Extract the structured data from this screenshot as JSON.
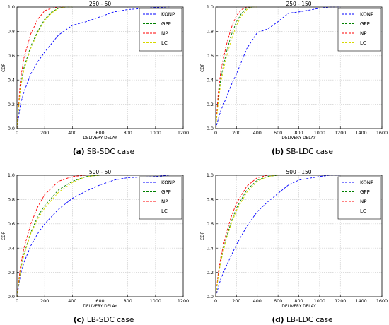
{
  "chart_data": [
    {
      "type": "line",
      "title": "250 - 50",
      "caption_label": "(a)",
      "caption_text": "SB-SDC case",
      "xlabel": "DELIVERY DELAY",
      "ylabel": "CDF",
      "xlim": [
        0,
        1200
      ],
      "ylim": [
        0,
        1.0
      ],
      "xticks": [
        "0",
        "200",
        "400",
        "600",
        "800",
        "1000",
        "1200"
      ],
      "yticks": [
        "0.0",
        "0.2",
        "0.4",
        "0.6",
        "0.8",
        "1.0"
      ],
      "grid": true,
      "legend_position": "top-right",
      "series": [
        {
          "name": "KONP",
          "color": "#0000ff",
          "x": [
            0,
            25,
            50,
            100,
            150,
            200,
            300,
            400,
            500,
            600,
            700,
            800,
            1000,
            1100
          ],
          "y": [
            0,
            0.2,
            0.3,
            0.45,
            0.55,
            0.63,
            0.77,
            0.85,
            0.88,
            0.92,
            0.96,
            0.98,
            0.995,
            1.0
          ]
        },
        {
          "name": "GPP",
          "color": "#008000",
          "x": [
            0,
            25,
            50,
            100,
            150,
            200,
            250,
            300,
            350,
            400
          ],
          "y": [
            0,
            0.35,
            0.5,
            0.68,
            0.8,
            0.9,
            0.96,
            0.99,
            1.0,
            1.0
          ]
        },
        {
          "name": "NP",
          "color": "#ff0000",
          "x": [
            0,
            25,
            50,
            100,
            150,
            200,
            250,
            300,
            350
          ],
          "y": [
            0,
            0.4,
            0.58,
            0.78,
            0.9,
            0.97,
            0.99,
            1.0,
            1.0
          ]
        },
        {
          "name": "LC",
          "color": "#d8d800",
          "x": [
            0,
            25,
            50,
            100,
            150,
            200,
            250,
            300,
            350,
            400
          ],
          "y": [
            0,
            0.33,
            0.48,
            0.66,
            0.79,
            0.89,
            0.95,
            0.99,
            1.0,
            1.0
          ]
        }
      ]
    },
    {
      "type": "line",
      "title": "250 - 150",
      "caption_label": "(b)",
      "caption_text": "SB-LDC case",
      "xlabel": "DELIVERY DELAY",
      "ylabel": "CDF",
      "xlim": [
        0,
        1600
      ],
      "ylim": [
        0,
        1.0
      ],
      "xticks": [
        "0",
        "200",
        "400",
        "600",
        "800",
        "1000",
        "1200",
        "1400",
        "1600"
      ],
      "yticks": [
        "0.0",
        "0.2",
        "0.4",
        "0.6",
        "0.8",
        "1.0"
      ],
      "grid": true,
      "legend_position": "top-right",
      "series": [
        {
          "name": "KONP",
          "color": "#0000ff",
          "x": [
            0,
            25,
            50,
            100,
            150,
            200,
            300,
            400,
            500,
            600,
            700,
            800,
            1000,
            1100,
            1200
          ],
          "y": [
            0,
            0.08,
            0.15,
            0.25,
            0.36,
            0.45,
            0.66,
            0.79,
            0.82,
            0.88,
            0.95,
            0.96,
            0.99,
            1.0,
            1.0
          ]
        },
        {
          "name": "GPP",
          "color": "#008000",
          "x": [
            0,
            25,
            50,
            100,
            150,
            200,
            250,
            300,
            350
          ],
          "y": [
            0,
            0.25,
            0.42,
            0.62,
            0.77,
            0.88,
            0.95,
            0.99,
            1.0
          ]
        },
        {
          "name": "NP",
          "color": "#ff0000",
          "x": [
            0,
            25,
            50,
            100,
            150,
            200,
            250,
            300,
            350
          ],
          "y": [
            0,
            0.3,
            0.48,
            0.68,
            0.83,
            0.93,
            0.98,
            1.0,
            1.0
          ]
        },
        {
          "name": "LC",
          "color": "#d8d800",
          "x": [
            0,
            25,
            50,
            100,
            150,
            200,
            250,
            300,
            350,
            400
          ],
          "y": [
            0,
            0.22,
            0.38,
            0.58,
            0.73,
            0.85,
            0.93,
            0.98,
            1.0,
            1.0
          ]
        }
      ]
    },
    {
      "type": "line",
      "title": "500 - 50",
      "caption_label": "(c)",
      "caption_text": "LB-SDC case",
      "xlabel": "DELIVERY DELAY",
      "ylabel": "CDF",
      "xlim": [
        0,
        1200
      ],
      "ylim": [
        0,
        1.0
      ],
      "xticks": [
        "0",
        "200",
        "400",
        "600",
        "800",
        "1000",
        "1200"
      ],
      "yticks": [
        "0.0",
        "0.2",
        "0.4",
        "0.6",
        "0.8",
        "1.0"
      ],
      "grid": true,
      "legend_position": "top-right",
      "series": [
        {
          "name": "KONP",
          "color": "#0000ff",
          "x": [
            0,
            25,
            50,
            100,
            150,
            200,
            300,
            400,
            500,
            600,
            700,
            800,
            1000,
            1100
          ],
          "y": [
            0,
            0.18,
            0.28,
            0.42,
            0.52,
            0.6,
            0.72,
            0.81,
            0.87,
            0.92,
            0.96,
            0.98,
            0.99,
            1.0
          ]
        },
        {
          "name": "GPP",
          "color": "#008000",
          "x": [
            0,
            25,
            50,
            100,
            150,
            200,
            300,
            400,
            500,
            600
          ],
          "y": [
            0,
            0.22,
            0.35,
            0.53,
            0.66,
            0.75,
            0.88,
            0.95,
            0.99,
            1.0
          ]
        },
        {
          "name": "NP",
          "color": "#ff0000",
          "x": [
            0,
            25,
            50,
            100,
            150,
            200,
            300,
            400,
            500
          ],
          "y": [
            0,
            0.25,
            0.4,
            0.6,
            0.74,
            0.84,
            0.95,
            0.99,
            1.0
          ]
        },
        {
          "name": "LC",
          "color": "#d8d800",
          "x": [
            0,
            25,
            50,
            100,
            150,
            200,
            300,
            400,
            500,
            600
          ],
          "y": [
            0,
            0.21,
            0.34,
            0.52,
            0.64,
            0.73,
            0.86,
            0.94,
            0.99,
            1.0
          ]
        }
      ]
    },
    {
      "type": "line",
      "title": "500 - 150",
      "caption_label": "(d)",
      "caption_text": "LB-LDC case",
      "xlabel": "DELIVERY DELAY",
      "ylabel": "CDF",
      "xlim": [
        0,
        1600
      ],
      "ylim": [
        0,
        1.0
      ],
      "xticks": [
        "0",
        "200",
        "400",
        "600",
        "800",
        "1000",
        "1200",
        "1400",
        "1600"
      ],
      "yticks": [
        "0.0",
        "0.2",
        "0.4",
        "0.6",
        "0.8",
        "1.0"
      ],
      "grid": true,
      "legend_position": "top-right",
      "series": [
        {
          "name": "KONP",
          "color": "#0000ff",
          "x": [
            0,
            25,
            50,
            100,
            150,
            200,
            300,
            400,
            500,
            600,
            700,
            800,
            1000,
            1100,
            1200
          ],
          "y": [
            0,
            0.08,
            0.15,
            0.25,
            0.34,
            0.43,
            0.58,
            0.7,
            0.78,
            0.85,
            0.92,
            0.96,
            0.99,
            1.0,
            1.0
          ]
        },
        {
          "name": "GPP",
          "color": "#008000",
          "x": [
            0,
            25,
            50,
            100,
            150,
            200,
            300,
            400,
            500,
            600
          ],
          "y": [
            0,
            0.18,
            0.3,
            0.48,
            0.62,
            0.73,
            0.88,
            0.96,
            0.99,
            1.0
          ]
        },
        {
          "name": "NP",
          "color": "#ff0000",
          "x": [
            0,
            25,
            50,
            100,
            150,
            200,
            300,
            400,
            500
          ],
          "y": [
            0,
            0.2,
            0.33,
            0.52,
            0.66,
            0.77,
            0.91,
            0.98,
            1.0
          ]
        },
        {
          "name": "LC",
          "color": "#d8d800",
          "x": [
            0,
            25,
            50,
            100,
            150,
            200,
            300,
            400,
            500,
            600
          ],
          "y": [
            0,
            0.17,
            0.29,
            0.47,
            0.6,
            0.71,
            0.86,
            0.95,
            0.99,
            1.0
          ]
        }
      ]
    }
  ]
}
